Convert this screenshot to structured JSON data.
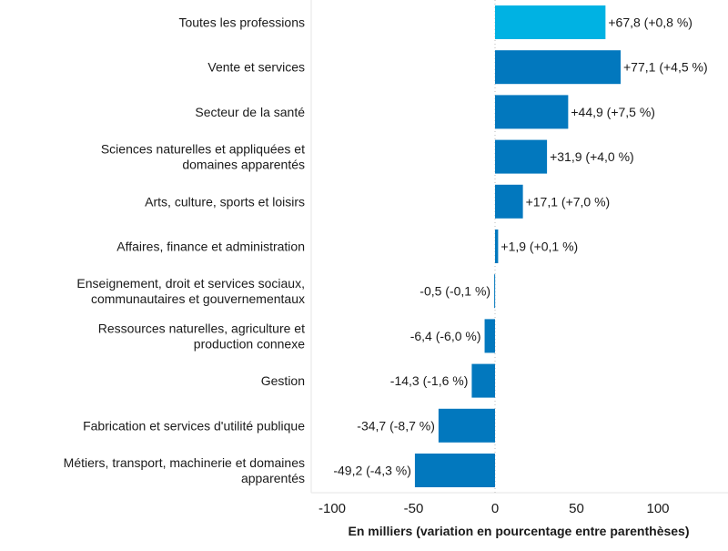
{
  "chart_data": {
    "type": "bar",
    "orientation": "horizontal",
    "xlabel": "En milliers (variation en pourcentage entre parenthèses)",
    "xlim": [
      -112,
      142
    ],
    "xticks": [
      -100,
      -50,
      0,
      50,
      100
    ],
    "grid": false,
    "categories": [
      [
        "Toutes les professions"
      ],
      [
        "Vente et services"
      ],
      [
        "Secteur de la santé"
      ],
      [
        "Sciences naturelles et appliquées et",
        "domaines apparentés"
      ],
      [
        "Arts, culture, sports et loisirs"
      ],
      [
        "Affaires, finance et administration"
      ],
      [
        "Enseignement, droit et services sociaux,",
        "communautaires et gouvernementaux"
      ],
      [
        "Ressources naturelles, agriculture et",
        "production connexe"
      ],
      [
        "Gestion"
      ],
      [
        "Fabrication et services d'utilité publique"
      ],
      [
        "Métiers, transport, machinerie et domaines",
        "apparentés"
      ]
    ],
    "values": [
      67.8,
      77.1,
      44.9,
      31.9,
      17.1,
      1.9,
      -0.5,
      -6.4,
      -14.3,
      -34.7,
      -49.2
    ],
    "data_labels": [
      "+67,8 (+0,8 %)",
      "+77,1 (+4,5 %)",
      "+44,9 (+7,5 %)",
      "+31,9 (+4,0 %)",
      "+17,1 (+7,0 %)",
      "+1,9 (+0,1 %)",
      "-0,5 (-0,1 %)",
      "-6,4 (-6,0 %)",
      "-14,3 (-1,6 %)",
      "-34,7 (-8,7 %)",
      "-49,2 (-4,3 %)"
    ],
    "colors": {
      "highlight": "#00b2e3",
      "default": "#0278be"
    },
    "highlight_index": 0
  }
}
